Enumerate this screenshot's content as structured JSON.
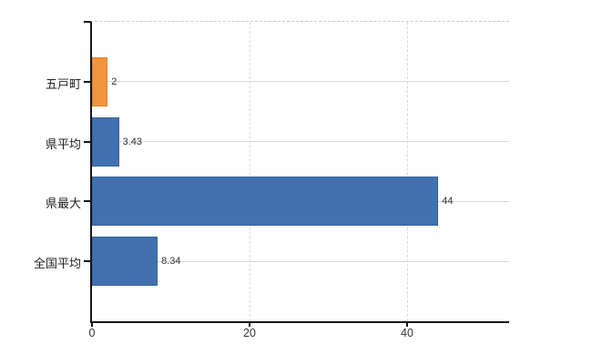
{
  "chart_data": {
    "type": "bar",
    "orientation": "horizontal",
    "title": "",
    "xlabel": "",
    "ylabel": "",
    "legend": "none",
    "categories": [
      "五戸町",
      "県平均",
      "県最大",
      "全国平均"
    ],
    "values": [
      2,
      3.43,
      44,
      8.34
    ],
    "value_labels": [
      "2",
      "3.43",
      "44",
      "8.34"
    ],
    "bar_colors": [
      "#f0943d",
      "#4171b1",
      "#4171b1",
      "#4171b1"
    ],
    "bar_border_colors": [
      "#de8226",
      "#365f9e",
      "#365f9e",
      "#365f9e"
    ],
    "x_ticks": [
      {
        "value": 0,
        "label": "0"
      },
      {
        "value": 20,
        "label": "20"
      },
      {
        "value": 40,
        "label": "40"
      }
    ],
    "xlim": [
      0,
      53
    ],
    "grid": {
      "horizontal": "solid line at each category center",
      "vertical": "dashed line at each nonzero x tick",
      "plot_top_border": "dashed"
    }
  },
  "colors": {
    "bar_orange": "#f0943d",
    "bar_blue": "#4171b1",
    "axis": "#161616",
    "grid_horizontal": "#d2dcd2",
    "grid_vertical": "#dadada",
    "plot_top_border": "#c9c9cd",
    "text": "#333333",
    "background": "#ffffff"
  }
}
